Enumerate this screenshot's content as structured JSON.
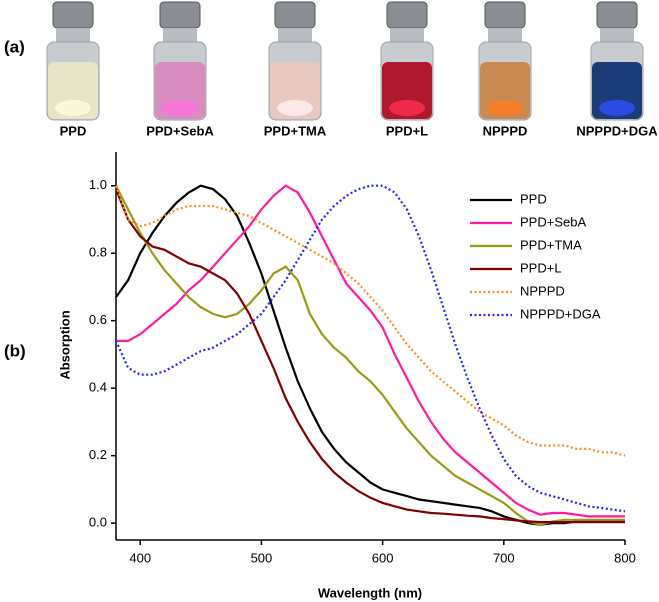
{
  "panel_labels": [
    "(a)",
    "(b)"
  ],
  "vial_labels": [
    "PPD",
    "PPD+SebA",
    "PPD+TMA",
    "PPD+L",
    "NPPPD",
    "NPPPD+DGA"
  ],
  "chart_data": {
    "type": "line",
    "xlabel": "Wavelength (nm)",
    "ylabel": "Absorption",
    "x": [
      380,
      390,
      400,
      410,
      420,
      430,
      440,
      450,
      460,
      470,
      480,
      490,
      500,
      510,
      520,
      530,
      540,
      550,
      560,
      570,
      580,
      590,
      600,
      610,
      620,
      630,
      640,
      650,
      660,
      670,
      680,
      690,
      700,
      710,
      720,
      730,
      740,
      750,
      760,
      770,
      780,
      790,
      800
    ],
    "xlim": [
      380,
      800
    ],
    "xticks": [
      400,
      500,
      600,
      700,
      800
    ],
    "ylim": [
      -0.05,
      1.1
    ],
    "yticks": [
      {
        "value": 0,
        "label": "0.0"
      },
      0.2,
      0.4,
      0.6,
      0.8,
      {
        "value": 1,
        "label": "1.0"
      }
    ],
    "legend": "upper right",
    "series": [
      {
        "name": "PPD",
        "color": "#000000",
        "line_style": "solid",
        "values": [
          0.67,
          0.72,
          0.8,
          0.86,
          0.91,
          0.95,
          0.98,
          1.0,
          0.99,
          0.96,
          0.91,
          0.83,
          0.74,
          0.63,
          0.52,
          0.42,
          0.34,
          0.27,
          0.22,
          0.18,
          0.15,
          0.12,
          0.1,
          0.09,
          0.08,
          0.07,
          0.065,
          0.06,
          0.055,
          0.05,
          0.045,
          0.035,
          0.02,
          0.01,
          0.0,
          -0.005,
          0.0,
          0.0,
          0.005,
          0.005,
          0.005,
          0.005,
          0.005
        ]
      },
      {
        "name": "PPD+SebA",
        "color": "#ff1aa0",
        "line_style": "solid",
        "values": [
          0.54,
          0.54,
          0.56,
          0.59,
          0.62,
          0.65,
          0.69,
          0.72,
          0.76,
          0.8,
          0.84,
          0.88,
          0.93,
          0.97,
          1.0,
          0.98,
          0.92,
          0.85,
          0.78,
          0.71,
          0.67,
          0.63,
          0.58,
          0.5,
          0.43,
          0.36,
          0.3,
          0.25,
          0.21,
          0.18,
          0.15,
          0.12,
          0.09,
          0.06,
          0.04,
          0.025,
          0.03,
          0.03,
          0.025,
          0.02,
          0.02,
          0.02,
          0.02
        ]
      },
      {
        "name": "PPD+TMA",
        "color": "#9a9a14",
        "line_style": "solid",
        "values": [
          1.0,
          0.93,
          0.86,
          0.8,
          0.75,
          0.71,
          0.67,
          0.64,
          0.62,
          0.61,
          0.62,
          0.65,
          0.69,
          0.74,
          0.76,
          0.72,
          0.62,
          0.56,
          0.52,
          0.49,
          0.45,
          0.42,
          0.38,
          0.33,
          0.28,
          0.24,
          0.2,
          0.17,
          0.14,
          0.12,
          0.1,
          0.08,
          0.06,
          0.03,
          0.005,
          -0.005,
          0.005,
          0.01,
          0.01,
          0.01,
          0.01,
          0.01,
          0.01
        ]
      },
      {
        "name": "PPD+L",
        "color": "#800000",
        "line_style": "solid",
        "values": [
          0.99,
          0.9,
          0.85,
          0.82,
          0.81,
          0.79,
          0.77,
          0.76,
          0.74,
          0.72,
          0.68,
          0.62,
          0.54,
          0.46,
          0.37,
          0.3,
          0.24,
          0.19,
          0.15,
          0.12,
          0.095,
          0.075,
          0.06,
          0.05,
          0.04,
          0.035,
          0.03,
          0.028,
          0.025,
          0.022,
          0.02,
          0.015,
          0.012,
          0.008,
          0.005,
          0.003,
          0.003,
          0.003,
          0.003,
          0.003,
          0.003,
          0.003,
          0.003
        ]
      },
      {
        "name": "NPPPD",
        "color": "#ff8c1a",
        "line_style": "dotted",
        "values": [
          1.0,
          0.9,
          0.88,
          0.89,
          0.91,
          0.93,
          0.94,
          0.94,
          0.94,
          0.93,
          0.92,
          0.91,
          0.89,
          0.87,
          0.85,
          0.83,
          0.81,
          0.79,
          0.77,
          0.74,
          0.71,
          0.67,
          0.63,
          0.58,
          0.53,
          0.49,
          0.45,
          0.42,
          0.39,
          0.36,
          0.33,
          0.31,
          0.29,
          0.26,
          0.24,
          0.23,
          0.23,
          0.23,
          0.22,
          0.22,
          0.21,
          0.21,
          0.2
        ]
      },
      {
        "name": "NPPPD+DGA",
        "color": "#2424ff",
        "line_style": "dotted",
        "values": [
          0.54,
          0.46,
          0.44,
          0.44,
          0.45,
          0.47,
          0.49,
          0.51,
          0.52,
          0.54,
          0.56,
          0.59,
          0.62,
          0.67,
          0.72,
          0.78,
          0.84,
          0.9,
          0.94,
          0.97,
          0.99,
          1.0,
          1.0,
          0.98,
          0.93,
          0.85,
          0.75,
          0.64,
          0.53,
          0.43,
          0.34,
          0.26,
          0.19,
          0.14,
          0.11,
          0.09,
          0.08,
          0.07,
          0.06,
          0.05,
          0.045,
          0.04,
          0.035
        ]
      }
    ]
  }
}
